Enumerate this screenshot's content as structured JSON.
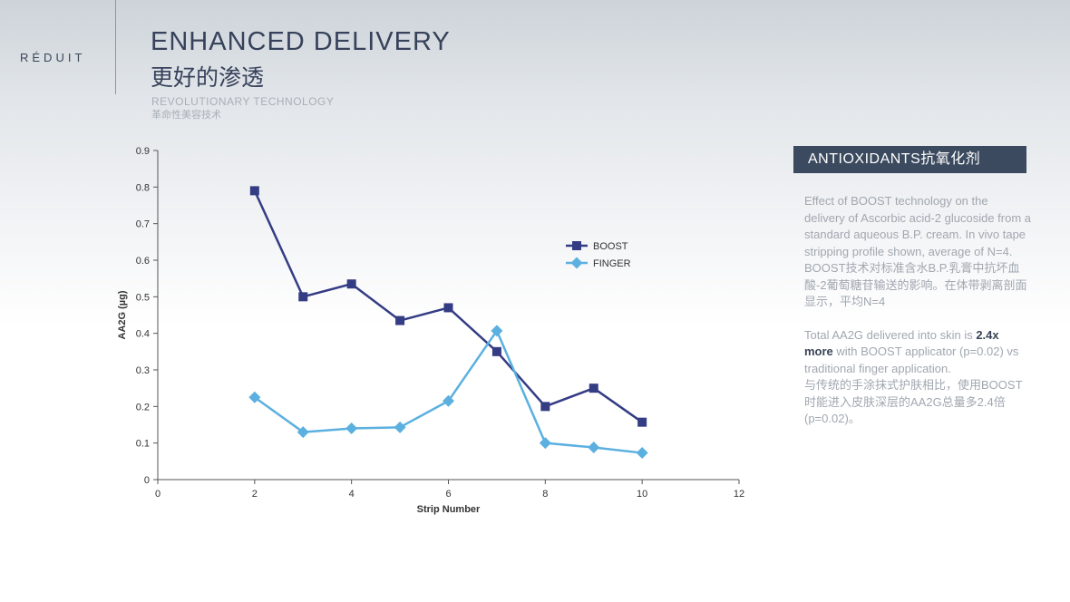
{
  "brand": "RÉDUIT",
  "header": {
    "title": "ENHANCED DELIVERY",
    "title_cn": "更好的渗透",
    "subtitle": "REVOLUTIONARY TECHNOLOGY",
    "subtitle_cn": "革命性美容技术"
  },
  "panel": {
    "title": "ANTIOXIDANTS抗氧化剂",
    "p1": "Effect of BOOST technology on the delivery of Ascorbic acid-2 glucoside from a standard aqueous B.P. cream. In vivo tape stripping profile shown, average of N=4.",
    "p1_cn": "BOOST技术对标准含水B.P.乳膏中抗坏血酸-2葡萄糖苷输送的影响。在体带剥离剖面显示，平均N=4",
    "p2_before": "Total AA2G delivered into skin is ",
    "p2_bold": "2.4x more",
    "p2_after": " with BOOST applicator (p=0.02) vs traditional finger application.",
    "p2_cn": "与传统的手涂抹式护肤相比，使用BOOST时能进入皮肤深层的AA2G总量多2.4倍(p=0.02)。"
  },
  "chart_data": {
    "type": "line",
    "xlabel": "Strip Number",
    "ylabel": "AA2G (µg)",
    "xlim": [
      0,
      12
    ],
    "ylim": [
      0,
      0.9
    ],
    "xticks": [
      "0",
      "2",
      "4",
      "6",
      "8",
      "10",
      "12"
    ],
    "yticks": [
      "0",
      "0.1",
      "0.2",
      "0.3",
      "0.4",
      "0.5",
      "0.6",
      "0.7",
      "0.8",
      "0.9"
    ],
    "x": [
      2,
      3,
      4,
      5,
      6,
      7,
      8,
      9,
      10
    ],
    "legend_position": "right",
    "grid": false,
    "series": [
      {
        "name": "BOOST",
        "marker": "square",
        "color": "#343c84",
        "values": [
          0.79,
          0.5,
          0.535,
          0.435,
          0.47,
          0.35,
          0.2,
          0.25,
          0.157
        ]
      },
      {
        "name": "FINGER",
        "marker": "diamond",
        "color": "#5bb0e0",
        "values": [
          0.225,
          0.13,
          0.14,
          0.143,
          0.215,
          0.407,
          0.1,
          0.088,
          0.073
        ]
      }
    ]
  }
}
